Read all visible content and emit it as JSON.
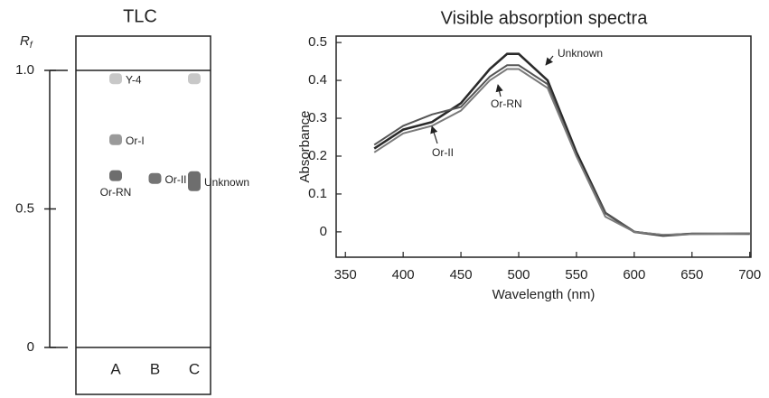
{
  "chart_data": [
    {
      "type": "tlc",
      "title": "TLC",
      "ylabel": "R",
      "ylabel_subscript": "f",
      "categories": [
        "A",
        "B",
        "C"
      ],
      "ylim": [
        0,
        1
      ],
      "yticks": [
        0,
        0.5,
        {
          "value": 1,
          "label": "1.0"
        }
      ],
      "spots": [
        {
          "lane": 0,
          "rf": 0.97,
          "label": "Y-4",
          "label_pos": "right",
          "color": "#c8c8c8"
        },
        {
          "lane": 0,
          "rf": 0.75,
          "label": "Or-I",
          "label_pos": "right",
          "color": "#9a9a9a"
        },
        {
          "lane": 0,
          "rf": 0.62,
          "label": "Or-RN",
          "label_pos": "below",
          "color": "#6e6e6e"
        },
        {
          "lane": 1,
          "rf": 0.61,
          "label": "Or-II",
          "label_pos": "right",
          "color": "#747474"
        },
        {
          "lane": 2,
          "rf": 0.97,
          "label": null,
          "label_pos": "right",
          "color": "#c8c8c8"
        },
        {
          "lane": 2,
          "rf": 0.6,
          "label": "Unknown",
          "label_pos": "right",
          "color": "#6e6e6e"
        }
      ]
    },
    {
      "type": "line",
      "title": "Visible absorption spectra",
      "xlabel": "Wavelength (nm)",
      "ylabel": "Absorbance",
      "x": [
        375,
        400,
        425,
        450,
        475,
        490,
        500,
        525,
        550,
        575,
        600,
        625,
        650,
        675,
        700
      ],
      "xlim": [
        342,
        701
      ],
      "xticks": [
        350,
        400,
        450,
        500,
        550,
        600,
        650,
        700
      ],
      "ylim": [
        -0.067,
        0.517
      ],
      "yticks": [
        0,
        0.1,
        0.2,
        0.3,
        0.4,
        0.5
      ],
      "series": [
        {
          "name": "Unknown",
          "color": "#2a2a2a",
          "values": [
            0.22,
            0.27,
            0.29,
            0.34,
            0.43,
            0.47,
            0.47,
            0.4,
            0.21,
            0.05,
            0.0,
            -0.01,
            -0.005,
            -0.005,
            -0.005
          ]
        },
        {
          "name": "Or-RN",
          "color": "#555555",
          "values": [
            0.23,
            0.28,
            0.31,
            0.33,
            0.41,
            0.44,
            0.44,
            0.39,
            0.2,
            0.05,
            0.0,
            -0.008,
            -0.005,
            -0.005,
            -0.004
          ]
        },
        {
          "name": "Or-II",
          "color": "#7a7a7a",
          "values": [
            0.21,
            0.26,
            0.28,
            0.32,
            0.4,
            0.43,
            0.43,
            0.38,
            0.2,
            0.04,
            0.0,
            -0.008,
            -0.006,
            -0.005,
            -0.004
          ]
        }
      ]
    }
  ]
}
